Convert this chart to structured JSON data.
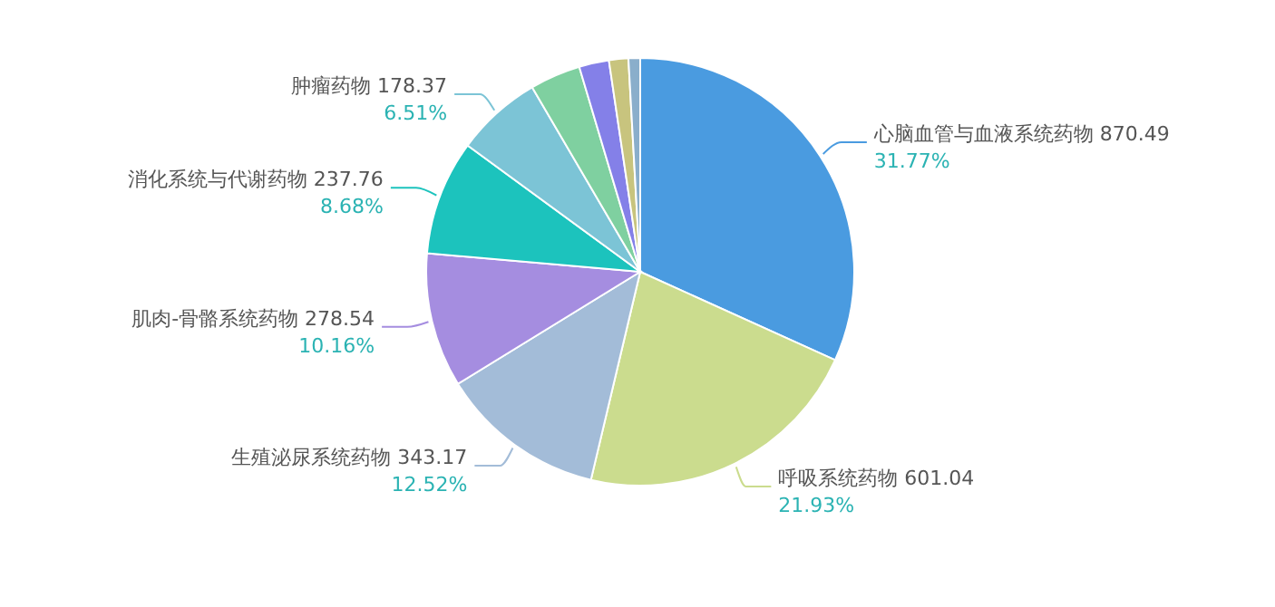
{
  "chart_data": {
    "type": "pie",
    "categories": [
      "心脑血管与血液系统药物 870.49",
      "呼吸系统药物 601.04",
      "生殖泌尿系统药物 343.17",
      "肌肉-骨骼系统药物 278.54",
      "消化系统与代谢药物 237.76",
      "肿瘤药物 178.37",
      null,
      null,
      null,
      null
    ],
    "values": [
      31.77,
      21.93,
      12.52,
      10.16,
      8.68,
      6.51,
      3.83,
      2.26,
      1.46,
      0.88
    ],
    "colors": [
      "#4a9be0",
      "#cbdc8e",
      "#a3bcd8",
      "#a58de0",
      "#1cc3bd",
      "#7cc4d6",
      "#7fd0a0",
      "#8480e8",
      "#c8c47e",
      "#8aaecb"
    ],
    "value_labels": [
      "31.77%",
      "21.93%",
      "12.52%",
      "10.16%",
      "8.68%",
      "6.51%",
      null,
      null,
      null,
      null
    ]
  }
}
